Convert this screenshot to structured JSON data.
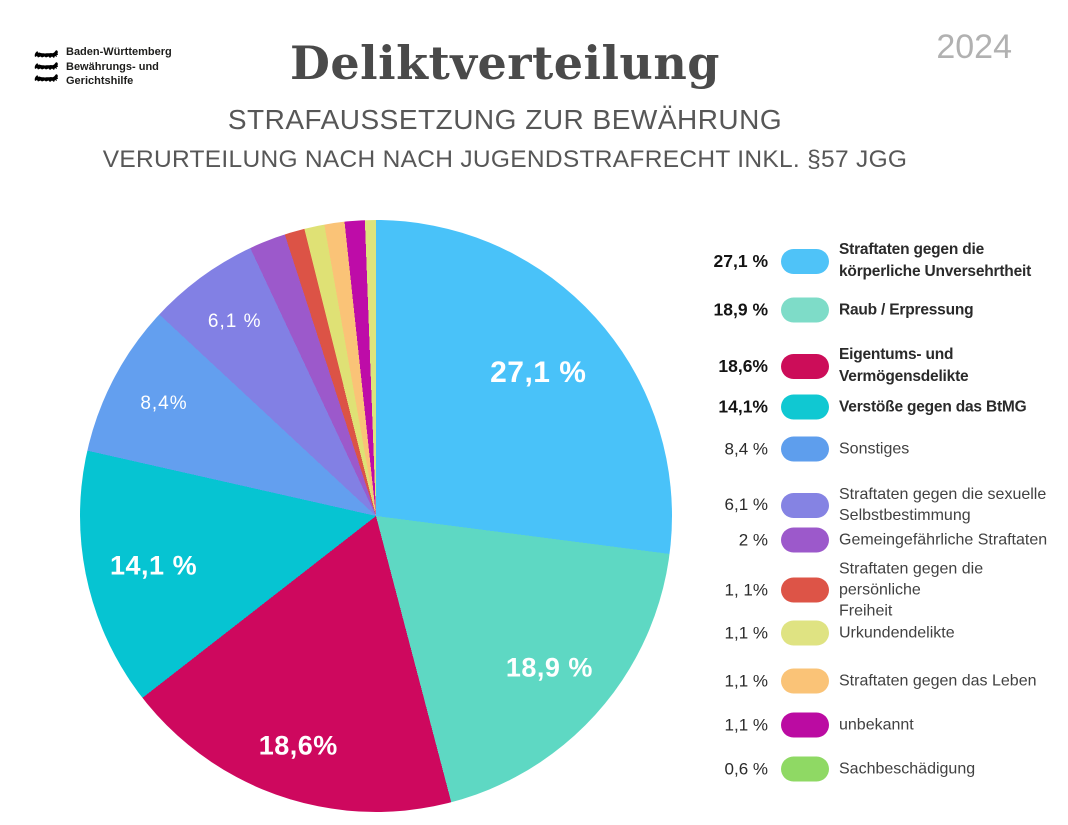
{
  "logo": {
    "lines": [
      "Baden-Württemberg",
      "Bewährungs- und",
      "Gerichtshilfe"
    ]
  },
  "year_badge": "2024",
  "header": {
    "title": "Deliktverteilung",
    "subtitle1": "STRAFAUSSETZUNG ZUR BEWÄHRUNG",
    "subtitle2": "VERURTEILUNG NACH NACH JUGENDSTRAFRECHT INKL. §57 JGG"
  },
  "chart_data": {
    "type": "pie",
    "title": "Deliktverteilung",
    "unit": "%",
    "direction": "clockwise",
    "start_angle_deg": 0,
    "legend_position": "right",
    "slices": [
      {
        "label": "Straftaten gegen die körperliche Unversehrtheit",
        "value": 27.1,
        "legend_pct": "27,1 %",
        "pie_label": "27,1 %",
        "color": "#49C2F9",
        "swatch_color": "#4FC3F8",
        "legend_lines": [
          "Straftaten gegen die",
          "körperliche Unversehrtheit"
        ],
        "emphasis": true
      },
      {
        "label": "Raub / Erpressung",
        "value": 18.9,
        "legend_pct": "18,9 %",
        "pie_label": "18,9 %",
        "color": "#5ED8C3",
        "swatch_color": "#7EDCC8",
        "legend_lines": [
          "Raub / Erpressung"
        ],
        "emphasis": true
      },
      {
        "label": "Eigentums- und Vermögensdelikte",
        "value": 18.6,
        "legend_pct": "18,6%",
        "pie_label": "18,6%",
        "color": "#CE085E",
        "swatch_color": "#CC0D59",
        "legend_lines": [
          "Eigentums- und",
          "Vermögensdelikte"
        ],
        "emphasis": true
      },
      {
        "label": "Verstöße gegen das BtMG",
        "value": 14.1,
        "legend_pct": "14,1%",
        "pie_label": "14,1 %",
        "color": "#06C4D2",
        "swatch_color": "#10C8D2",
        "legend_lines": [
          "Verstöße gegen das BtMG"
        ],
        "emphasis": true
      },
      {
        "label": "Sonstiges",
        "value": 8.4,
        "legend_pct": "8,4 %",
        "pie_label": "8,4%",
        "color": "#639FEF",
        "swatch_color": "#5E9EED",
        "legend_lines": [
          "Sonstiges"
        ],
        "emphasis": false
      },
      {
        "label": "Straftaten gegen die sexuelle Selbstbestimmung",
        "value": 6.1,
        "legend_pct": "6,1 %",
        "pie_label": "6,1 %",
        "color": "#8280E4",
        "swatch_color": "#8583E3",
        "legend_lines": [
          "Straftaten gegen die sexuelle",
          "Selbstbestimmung"
        ],
        "emphasis": false
      },
      {
        "label": "Gemeingefährliche Straftaten",
        "value": 2.0,
        "legend_pct": "2 %",
        "pie_label": "",
        "color": "#9C59CB",
        "swatch_color": "#9C59CB",
        "legend_lines": [
          "Gemeingefährliche Straftaten"
        ],
        "emphasis": false
      },
      {
        "label": "Straftaten gegen die persönliche Freiheit",
        "value": 1.1,
        "legend_pct": "1, 1%",
        "pie_label": "",
        "color": "#DC5346",
        "swatch_color": "#DD5447",
        "legend_lines": [
          "Straftaten gegen die persönliche",
          "Freiheit"
        ],
        "emphasis": false
      },
      {
        "label": "Urkundendelikte",
        "value": 1.1,
        "legend_pct": "1,1 %",
        "pie_label": "",
        "color": "#DFE175",
        "swatch_color": "#DFE382",
        "legend_lines": [
          "Urkundendelikte"
        ],
        "emphasis": false
      },
      {
        "label": "Straftaten gegen das Leben",
        "value": 1.1,
        "legend_pct": "1,1 %",
        "pie_label": "",
        "color": "#FAC377",
        "swatch_color": "#FAC377",
        "legend_lines": [
          "Straftaten gegen das Leben"
        ],
        "emphasis": false
      },
      {
        "label": "unbekannt",
        "value": 1.1,
        "legend_pct": "1,1 %",
        "pie_label": "",
        "color": "#BE0CA8",
        "swatch_color": "#BB0BA2",
        "legend_lines": [
          "unbekannt"
        ],
        "emphasis": false
      },
      {
        "label": "Sachbeschädigung",
        "value": 0.6,
        "legend_pct": "0,6 %",
        "pie_label": "",
        "color": "#DDE47C",
        "swatch_color": "#8FD964",
        "legend_lines": [
          "Sachbeschädigung"
        ],
        "emphasis": false
      }
    ]
  }
}
